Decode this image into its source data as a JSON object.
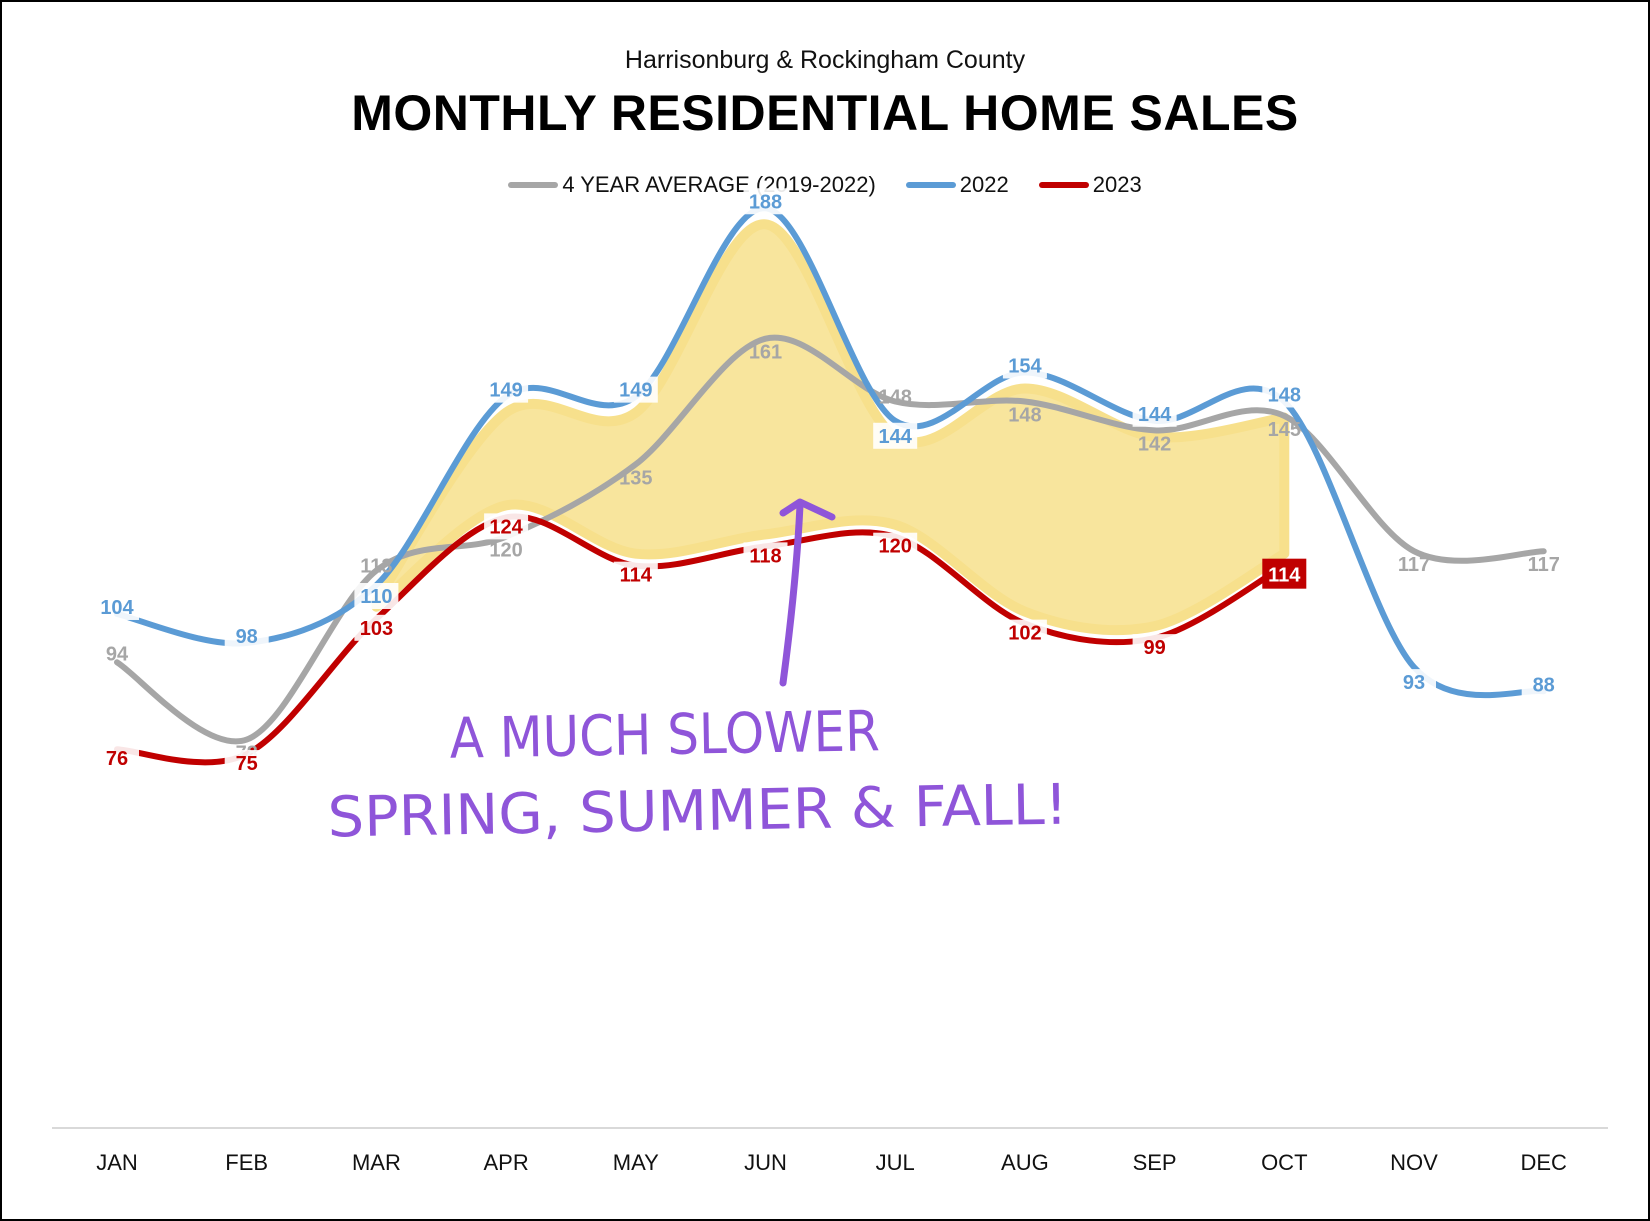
{
  "subtitle": "Harrisonburg & Rockingham County",
  "title": "MONTHLY RESIDENTIAL HOME SALES",
  "annotation": {
    "line1": "A MUCH SLOWER",
    "line2": "SPRING, SUMMER & FALL!"
  },
  "colors": {
    "avg": "#A6A6A6",
    "y2022": "#5B9BD5",
    "y2023": "#C00000",
    "highlight": "#F7E08C",
    "annotation": "#8F55D9"
  },
  "chart_data": {
    "type": "line",
    "categories": [
      "JAN",
      "FEB",
      "MAR",
      "APR",
      "MAY",
      "JUN",
      "JUL",
      "AUG",
      "SEP",
      "OCT",
      "NOV",
      "DEC"
    ],
    "series": [
      {
        "name": "4 YEAR AVERAGE (2019-2022)",
        "values": [
          94,
          78,
          113,
          120,
          135,
          161,
          148,
          148,
          142,
          145,
          117,
          117
        ]
      },
      {
        "name": "2022",
        "values": [
          104,
          98,
          110,
          149,
          149,
          188,
          144,
          154,
          144,
          148,
          93,
          88
        ]
      },
      {
        "name": "2023",
        "values": [
          76,
          75,
          103,
          124,
          114,
          118,
          120,
          102,
          99,
          114,
          null,
          null
        ]
      }
    ],
    "xlabel": "",
    "ylabel": "",
    "grid": false,
    "legend": "top-center"
  }
}
